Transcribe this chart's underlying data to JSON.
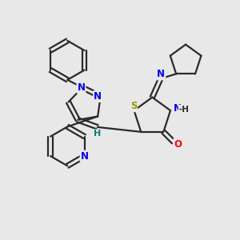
{
  "bg_color": "#e8e8e8",
  "bond_color": "#2a2a2a",
  "bond_width": 1.6,
  "dbl_sep": 0.09,
  "figsize": [
    3.0,
    3.0
  ],
  "dpi": 100,
  "colors": {
    "N": "#0000ee",
    "S": "#999900",
    "O": "#ff0000",
    "C": "#2a2a2a",
    "H": "#008080"
  }
}
